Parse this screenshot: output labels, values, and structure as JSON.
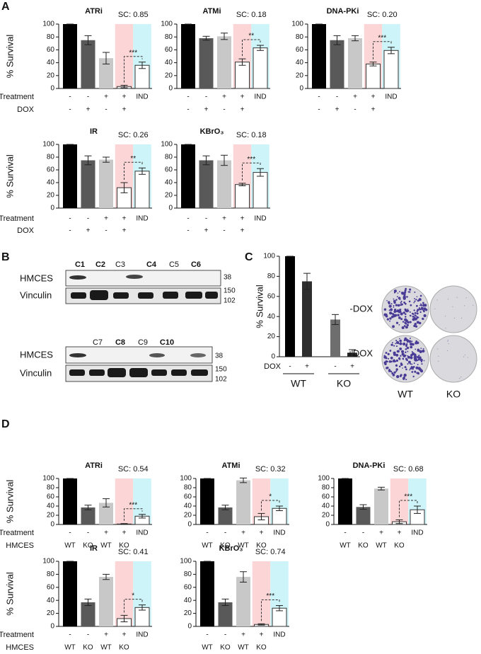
{
  "panels": [
    "A",
    "B",
    "C",
    "D"
  ],
  "chart_data": [
    {
      "type": "bar",
      "title": "ATRi",
      "annotation": "SC: 0.85",
      "ylabel": "% Survival",
      "values": [
        100,
        75,
        47,
        3,
        36
      ],
      "errors": [
        0,
        7,
        9,
        2,
        5
      ],
      "colors": [
        "#000000",
        "#595959",
        "#c8c8c8",
        "#ffffff",
        "#ffffff"
      ],
      "significance": "***",
      "ylim": [
        0,
        100
      ],
      "yticks": [
        0,
        20,
        40,
        60,
        80,
        100
      ],
      "row_names": [
        "Treatment",
        "DOX"
      ],
      "rows": [
        [
          "-",
          "-",
          "+",
          "+",
          "IND"
        ],
        [
          "-",
          "+",
          "-",
          "+",
          null
        ]
      ]
    },
    {
      "type": "bar",
      "title": "ATMi",
      "annotation": "SC: 0.18",
      "values": [
        100,
        78,
        81,
        41,
        63
      ],
      "errors": [
        0,
        3,
        5,
        5,
        4
      ],
      "colors": [
        "#000000",
        "#595959",
        "#c8c8c8",
        "#ffffff",
        "#ffffff"
      ],
      "significance": "**",
      "ylim": [
        0,
        100
      ],
      "yticks": [
        0,
        20,
        40,
        60,
        80,
        100
      ],
      "rows": [
        [
          "-",
          "-",
          "+",
          "+",
          "IND"
        ],
        [
          "-",
          "+",
          "-",
          "+",
          null
        ]
      ]
    },
    {
      "type": "bar",
      "title": "DNA-PKi",
      "annotation": "SC: 0.20",
      "values": [
        100,
        75,
        78,
        38,
        59
      ],
      "errors": [
        0,
        7,
        4,
        3,
        5
      ],
      "colors": [
        "#000000",
        "#595959",
        "#c8c8c8",
        "#ffffff",
        "#ffffff"
      ],
      "significance": "***",
      "ylim": [
        0,
        100
      ],
      "yticks": [
        0,
        20,
        40,
        60,
        80,
        100
      ],
      "rows": [
        [
          "-",
          "-",
          "+",
          "+",
          "IND"
        ],
        [
          "-",
          "+",
          "-",
          "+",
          null
        ]
      ]
    },
    {
      "type": "bar",
      "title": "IR",
      "annotation": "SC: 0.26",
      "ylabel": "% Survival",
      "values": [
        100,
        75,
        76,
        32,
        58
      ],
      "errors": [
        0,
        7,
        4,
        8,
        5
      ],
      "colors": [
        "#000000",
        "#595959",
        "#c8c8c8",
        "#ffffff",
        "#ffffff"
      ],
      "significance": "**",
      "ylim": [
        0,
        100
      ],
      "yticks": [
        0,
        20,
        40,
        60,
        80,
        100
      ],
      "row_names": [
        "Treatment",
        "DOX"
      ],
      "rows": [
        [
          "-",
          "-",
          "+",
          "+",
          "IND"
        ],
        [
          "-",
          "+",
          "-",
          "+",
          null
        ]
      ]
    },
    {
      "type": "bar",
      "title": "KBrO₃",
      "annotation": "SC: 0.18",
      "values": [
        100,
        75,
        75,
        37,
        56
      ],
      "errors": [
        0,
        7,
        8,
        2,
        6
      ],
      "colors": [
        "#000000",
        "#595959",
        "#c8c8c8",
        "#ffffff",
        "#ffffff"
      ],
      "significance": "***",
      "ylim": [
        0,
        100
      ],
      "yticks": [
        0,
        20,
        40,
        60,
        80,
        100
      ],
      "rows": [
        [
          "-",
          "-",
          "+",
          "+",
          "IND"
        ],
        [
          "-",
          "+",
          "-",
          "+",
          null
        ]
      ]
    },
    {
      "type": "bar",
      "ylabel": "% Survival",
      "values": [
        100,
        75,
        37,
        4
      ],
      "errors": [
        0,
        8,
        5,
        3
      ],
      "colors": [
        "#000000",
        "#2e2e2e",
        "#6e6e6e",
        "#262626"
      ],
      "ylim": [
        0,
        100
      ],
      "yticks": [
        0,
        20,
        40,
        60,
        80,
        100
      ],
      "row_names": [
        "DOX"
      ],
      "rows": [
        [
          "-",
          "+",
          "-",
          "+"
        ]
      ],
      "groups": [
        "WT",
        "KO"
      ]
    },
    {
      "type": "bar",
      "title": "ATRi",
      "annotation": "SC: 0.54",
      "ylabel": "% Survival",
      "values": [
        100,
        37,
        47,
        1,
        18
      ],
      "errors": [
        0,
        5,
        9,
        1,
        4
      ],
      "colors": [
        "#000000",
        "#595959",
        "#c8c8c8",
        "#ffffff",
        "#ffffff"
      ],
      "significance": "***",
      "ylim": [
        0,
        100
      ],
      "yticks": [
        0,
        20,
        40,
        60,
        80,
        100
      ],
      "row_names": [
        "Treatment",
        "HMCES"
      ],
      "rows": [
        [
          "-",
          "-",
          "+",
          "+",
          "IND"
        ],
        [
          "WT",
          "KO",
          "WT",
          "KO",
          null
        ]
      ]
    },
    {
      "type": "bar",
      "title": "ATMi",
      "annotation": "SC: 0.32",
      "values": [
        100,
        37,
        96,
        17,
        35
      ],
      "errors": [
        0,
        5,
        5,
        7,
        5
      ],
      "colors": [
        "#000000",
        "#595959",
        "#c8c8c8",
        "#ffffff",
        "#ffffff"
      ],
      "significance": "*",
      "ylim": [
        0,
        100
      ],
      "yticks": [
        0,
        20,
        40,
        60,
        80,
        100
      ],
      "rows": [
        [
          "-",
          "-",
          "+",
          "+",
          "IND"
        ],
        [
          "WT",
          "KO",
          "WT",
          "KO",
          null
        ]
      ]
    },
    {
      "type": "bar",
      "title": "DNA-PKi",
      "annotation": "SC: 0.68",
      "values": [
        100,
        38,
        78,
        6,
        32
      ],
      "errors": [
        0,
        5,
        3,
        4,
        8
      ],
      "colors": [
        "#000000",
        "#595959",
        "#c8c8c8",
        "#ffffff",
        "#ffffff"
      ],
      "significance": "***",
      "ylim": [
        0,
        100
      ],
      "yticks": [
        0,
        20,
        40,
        60,
        80,
        100
      ],
      "rows": [
        [
          "-",
          "-",
          "+",
          "+",
          "IND"
        ],
        [
          "WT",
          "KO",
          "WT",
          "KO",
          null
        ]
      ]
    },
    {
      "type": "bar",
      "title": "IR",
      "annotation": "SC: 0.41",
      "ylabel": "% Survival",
      "values": [
        100,
        37,
        76,
        12,
        29
      ],
      "errors": [
        0,
        5,
        4,
        5,
        4
      ],
      "colors": [
        "#000000",
        "#595959",
        "#c8c8c8",
        "#ffffff",
        "#ffffff"
      ],
      "significance": "*",
      "ylim": [
        0,
        100
      ],
      "yticks": [
        0,
        20,
        40,
        60,
        80,
        100
      ],
      "row_names": [
        "Treatment",
        "HMCES"
      ],
      "rows": [
        [
          "-",
          "-",
          "+",
          "+",
          "IND"
        ],
        [
          "WT",
          "KO",
          "WT",
          "KO",
          null
        ]
      ]
    },
    {
      "type": "bar",
      "title": "KBrO₃",
      "annotation": "SC: 0.74",
      "values": [
        100,
        37,
        76,
        3,
        28
      ],
      "errors": [
        0,
        5,
        8,
        1,
        4
      ],
      "colors": [
        "#000000",
        "#595959",
        "#c8c8c8",
        "#ffffff",
        "#ffffff"
      ],
      "significance": "***",
      "ylim": [
        0,
        100
      ],
      "yticks": [
        0,
        20,
        40,
        60,
        80,
        100
      ],
      "rows": [
        [
          "-",
          "-",
          "+",
          "+",
          "IND"
        ],
        [
          "WT",
          "KO",
          "WT",
          "KO",
          null
        ]
      ]
    }
  ],
  "blot": {
    "proteins": [
      "HMCES",
      "Vinculin",
      "HMCES",
      "Vinculin"
    ],
    "clones_top": [
      {
        "label": "C1",
        "bold": true
      },
      {
        "label": "C2",
        "bold": true
      },
      {
        "label": "C3",
        "bold": false
      },
      {
        "label": "C4",
        "bold": true
      },
      {
        "label": "C5",
        "bold": false
      },
      {
        "label": "C6",
        "bold": true
      }
    ],
    "clones_bottom": [
      {
        "label": "C7",
        "bold": false
      },
      {
        "label": "C8",
        "bold": true
      },
      {
        "label": "C9",
        "bold": false
      },
      {
        "label": "C10",
        "bold": true
      }
    ],
    "markers_top": [
      "38",
      "150",
      "102"
    ],
    "markers_bottom": [
      "38",
      "150",
      "102"
    ]
  },
  "plates": {
    "rows": [
      "-DOX",
      "+DOX"
    ],
    "columns": [
      "WT",
      "KO"
    ]
  }
}
